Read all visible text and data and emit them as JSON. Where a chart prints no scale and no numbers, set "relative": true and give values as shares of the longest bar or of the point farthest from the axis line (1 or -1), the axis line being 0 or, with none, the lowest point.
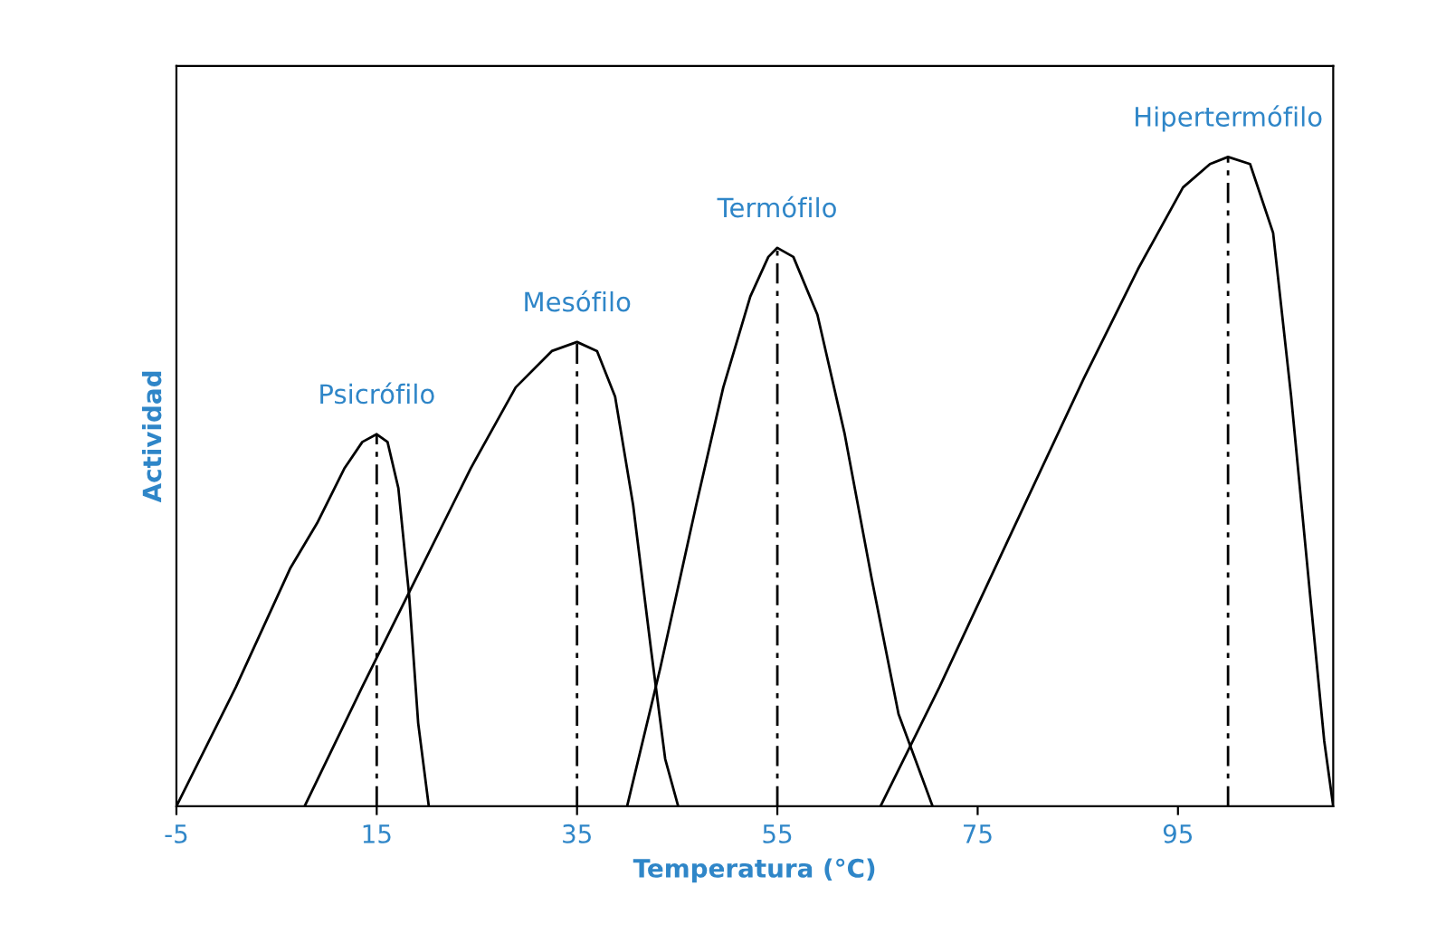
{
  "chart_data": {
    "type": "line",
    "relative": true,
    "xlabel": "Temperatura (°C)",
    "ylabel": "Actividad",
    "xlim": [
      -5,
      110.5
    ],
    "xticks": [
      -5,
      15,
      35,
      55,
      75,
      95
    ],
    "grid": false,
    "legend": false,
    "marker": "none",
    "tick_labels": "x",
    "series": [
      {
        "name": "Psicrófilo",
        "color": "#000000",
        "line_style": "solid",
        "x": [
          -5,
          0.95,
          6.35,
          9.05,
          11.76,
          13.56,
          15,
          16.08,
          17.16,
          18.24,
          19.14,
          20.2
        ],
        "values": [
          0,
          0.184,
          0.366,
          0.436,
          0.52,
          0.561,
          0.573,
          0.561,
          0.49,
          0.324,
          0.128,
          0
        ]
      },
      {
        "name": "Mesófilo",
        "color": "#000000",
        "line_style": "solid",
        "x": [
          7.8,
          13.56,
          18.96,
          24.37,
          28.87,
          32.48,
          35,
          37,
          38.8,
          40.6,
          42.4,
          43.8,
          45.1
        ],
        "values": [
          0,
          0.184,
          0.352,
          0.52,
          0.645,
          0.701,
          0.715,
          0.701,
          0.631,
          0.464,
          0.24,
          0.073,
          0
        ]
      },
      {
        "name": "Termófilo",
        "color": "#000000",
        "line_style": "solid",
        "x": [
          40,
          43.3,
          46.9,
          49.6,
          52.3,
          54.1,
          55,
          56.6,
          59,
          61.7,
          64.4,
          67.1,
          70.5
        ],
        "values": [
          0,
          0.212,
          0.464,
          0.645,
          0.785,
          0.846,
          0.86,
          0.846,
          0.757,
          0.575,
          0.352,
          0.142,
          0
        ]
      },
      {
        "name": "Hipertermófilo",
        "color": "#000000",
        "line_style": "solid",
        "x": [
          65.3,
          71.2,
          78.4,
          85.6,
          91,
          95.5,
          98.2,
          100,
          102.2,
          104.5,
          106.3,
          108.2,
          109.6,
          110.5
        ],
        "values": [
          0,
          0.184,
          0.422,
          0.659,
          0.827,
          0.953,
          0.989,
          1,
          0.989,
          0.883,
          0.631,
          0.324,
          0.101,
          0
        ]
      }
    ],
    "ref_lines": [
      {
        "axis": "x",
        "value": 15,
        "color": "#000000",
        "line_style": "dashed"
      },
      {
        "axis": "x",
        "value": 35,
        "color": "#000000",
        "line_style": "dashed"
      },
      {
        "axis": "x",
        "value": 55,
        "color": "#000000",
        "line_style": "dashed"
      },
      {
        "axis": "x",
        "value": 100,
        "color": "#000000",
        "line_style": "dashed"
      }
    ]
  }
}
